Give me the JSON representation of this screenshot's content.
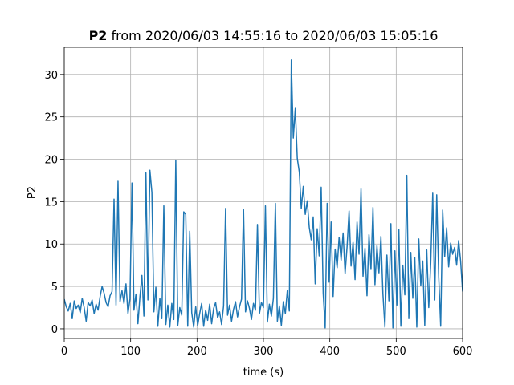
{
  "chart_data": {
    "type": "line",
    "title_bold": "P2",
    "title": "from 2020/06/03 14:55:16 to 2020/06/03 15:05:16",
    "xlabel": "time (s)",
    "ylabel": "P2",
    "color": "#1f77b4",
    "grid": true,
    "xlim": [
      0,
      600
    ],
    "xticks": [
      0,
      100,
      200,
      300,
      400,
      500,
      600
    ],
    "ylim": [
      -1.14,
      33.2
    ],
    "yticks": [
      0,
      5,
      10,
      15,
      20,
      25,
      30
    ],
    "x": [
      0,
      3,
      6,
      9,
      12,
      15,
      18,
      21,
      24,
      27,
      30,
      33,
      36,
      39,
      42,
      45,
      48,
      51,
      54,
      57,
      60,
      63,
      66,
      69,
      72,
      75,
      78,
      81,
      84,
      87,
      90,
      93,
      96,
      99,
      102,
      105,
      108,
      111,
      114,
      117,
      120,
      123,
      126,
      129,
      132,
      135,
      138,
      141,
      144,
      147,
      150,
      153,
      156,
      159,
      162,
      165,
      168,
      171,
      174,
      177,
      180,
      183,
      186,
      189,
      192,
      195,
      198,
      201,
      204,
      207,
      210,
      213,
      216,
      219,
      222,
      225,
      228,
      231,
      234,
      237,
      240,
      243,
      246,
      249,
      252,
      255,
      258,
      261,
      264,
      267,
      270,
      273,
      276,
      279,
      282,
      285,
      288,
      291,
      294,
      297,
      300,
      303,
      306,
      309,
      312,
      315,
      318,
      321,
      324,
      327,
      330,
      333,
      336,
      339,
      342,
      345,
      348,
      351,
      354,
      357,
      360,
      363,
      366,
      369,
      372,
      375,
      378,
      381,
      384,
      387,
      390,
      393,
      396,
      399,
      402,
      405,
      408,
      411,
      414,
      417,
      420,
      423,
      426,
      429,
      432,
      435,
      438,
      441,
      444,
      447,
      450,
      453,
      456,
      459,
      462,
      465,
      468,
      471,
      474,
      477,
      480,
      483,
      486,
      489,
      492,
      495,
      498,
      501,
      504,
      507,
      510,
      513,
      516,
      519,
      522,
      525,
      528,
      531,
      534,
      537,
      540,
      543,
      546,
      549,
      552,
      555,
      558,
      561,
      564,
      567,
      570,
      573,
      576,
      579,
      582,
      585,
      588,
      591,
      594,
      597,
      600
    ],
    "values": [
      3.5,
      2.6,
      2.1,
      3.0,
      1.2,
      3.3,
      2.4,
      2.8,
      1.9,
      3.6,
      2.5,
      0.9,
      3.1,
      2.7,
      3.4,
      1.8,
      2.9,
      2.2,
      3.8,
      5.0,
      4.2,
      3.1,
      2.6,
      3.9,
      4.4,
      15.3,
      2.8,
      17.4,
      3.2,
      4.5,
      3.0,
      5.3,
      1.8,
      3.5,
      17.2,
      2.2,
      4.1,
      0.6,
      3.8,
      6.3,
      1.5,
      18.4,
      3.4,
      18.7,
      16.1,
      2.0,
      4.9,
      0.3,
      3.6,
      1.2,
      14.5,
      0.5,
      2.8,
      0.2,
      3.0,
      1.1,
      19.9,
      0.4,
      2.5,
      1.6,
      13.8,
      13.5,
      0.3,
      11.5,
      1.9,
      0.2,
      2.6,
      0.4,
      1.8,
      3.0,
      0.3,
      2.2,
      1.0,
      2.9,
      0.6,
      2.4,
      3.1,
      1.3,
      2.0,
      0.5,
      2.7,
      14.2,
      1.6,
      2.8,
      0.9,
      2.3,
      3.2,
      1.4,
      2.6,
      3.5,
      14.1,
      2.0,
      3.3,
      2.4,
      1.1,
      3.0,
      2.2,
      12.3,
      1.8,
      3.1,
      2.5,
      14.5,
      0.8,
      2.9,
      1.5,
      3.6,
      14.8,
      0.9,
      2.7,
      0.4,
      3.2,
      1.8,
      4.5,
      2.1,
      31.7,
      22.5,
      26.0,
      20.1,
      18.5,
      14.2,
      16.8,
      13.5,
      15.1,
      12.0,
      10.5,
      13.2,
      5.3,
      11.8,
      8.6,
      16.7,
      4.2,
      0.1,
      14.8,
      5.5,
      12.6,
      3.8,
      9.4,
      7.2,
      10.8,
      8.1,
      11.3,
      6.5,
      9.7,
      13.9,
      7.4,
      10.2,
      5.8,
      12.6,
      8.8,
      16.5,
      6.2,
      9.5,
      3.9,
      11.1,
      7.0,
      14.3,
      5.2,
      9.8,
      6.6,
      10.9,
      4.1,
      0.2,
      8.7,
      3.3,
      12.4,
      0.1,
      9.2,
      2.8,
      11.7,
      0.3,
      7.5,
      4.0,
      18.1,
      1.2,
      9.0,
      3.6,
      8.4,
      0.2,
      10.6,
      5.1,
      8.0,
      0.4,
      9.3,
      2.5,
      7.8,
      16.0,
      3.4,
      15.8,
      6.2,
      0.3,
      14.0,
      8.5,
      11.9,
      7.3,
      10.1,
      8.8,
      9.6,
      7.5,
      10.4,
      8.0,
      4.4
    ]
  }
}
